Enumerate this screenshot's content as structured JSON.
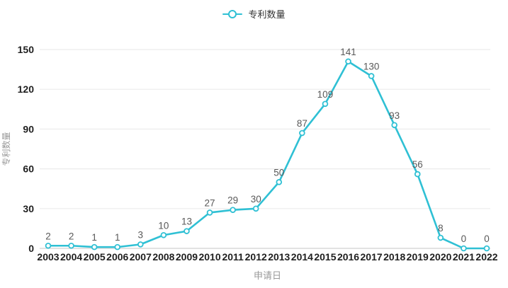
{
  "legend": {
    "label": "专利数量"
  },
  "chart_data": {
    "type": "line",
    "title": "",
    "categories": [
      "2003",
      "2004",
      "2005",
      "2006",
      "2007",
      "2008",
      "2009",
      "2010",
      "2011",
      "2012",
      "2013",
      "2014",
      "2015",
      "2016",
      "2017",
      "2018",
      "2019",
      "2020",
      "2021",
      "2022"
    ],
    "series": [
      {
        "name": "专利数量",
        "values": [
          2,
          2,
          1,
          1,
          3,
          10,
          13,
          27,
          29,
          30,
          50,
          87,
          109,
          141,
          130,
          93,
          56,
          8,
          0,
          0
        ]
      }
    ],
    "xlabel": "申请日",
    "ylabel": "专利数量",
    "ylim": [
      0,
      150
    ],
    "yticks": [
      0,
      30,
      60,
      90,
      120,
      150
    ],
    "grid": true,
    "legend_position": "top-center",
    "show_data_labels": true,
    "colors": {
      "line": "#2fc0d4",
      "marker_fill": "#ffffff",
      "grid": "#ececec",
      "axis_line": "#d9d9d9",
      "tick_label": "#1f1f1f",
      "data_label": "#595959",
      "axis_title": "#999999"
    }
  }
}
